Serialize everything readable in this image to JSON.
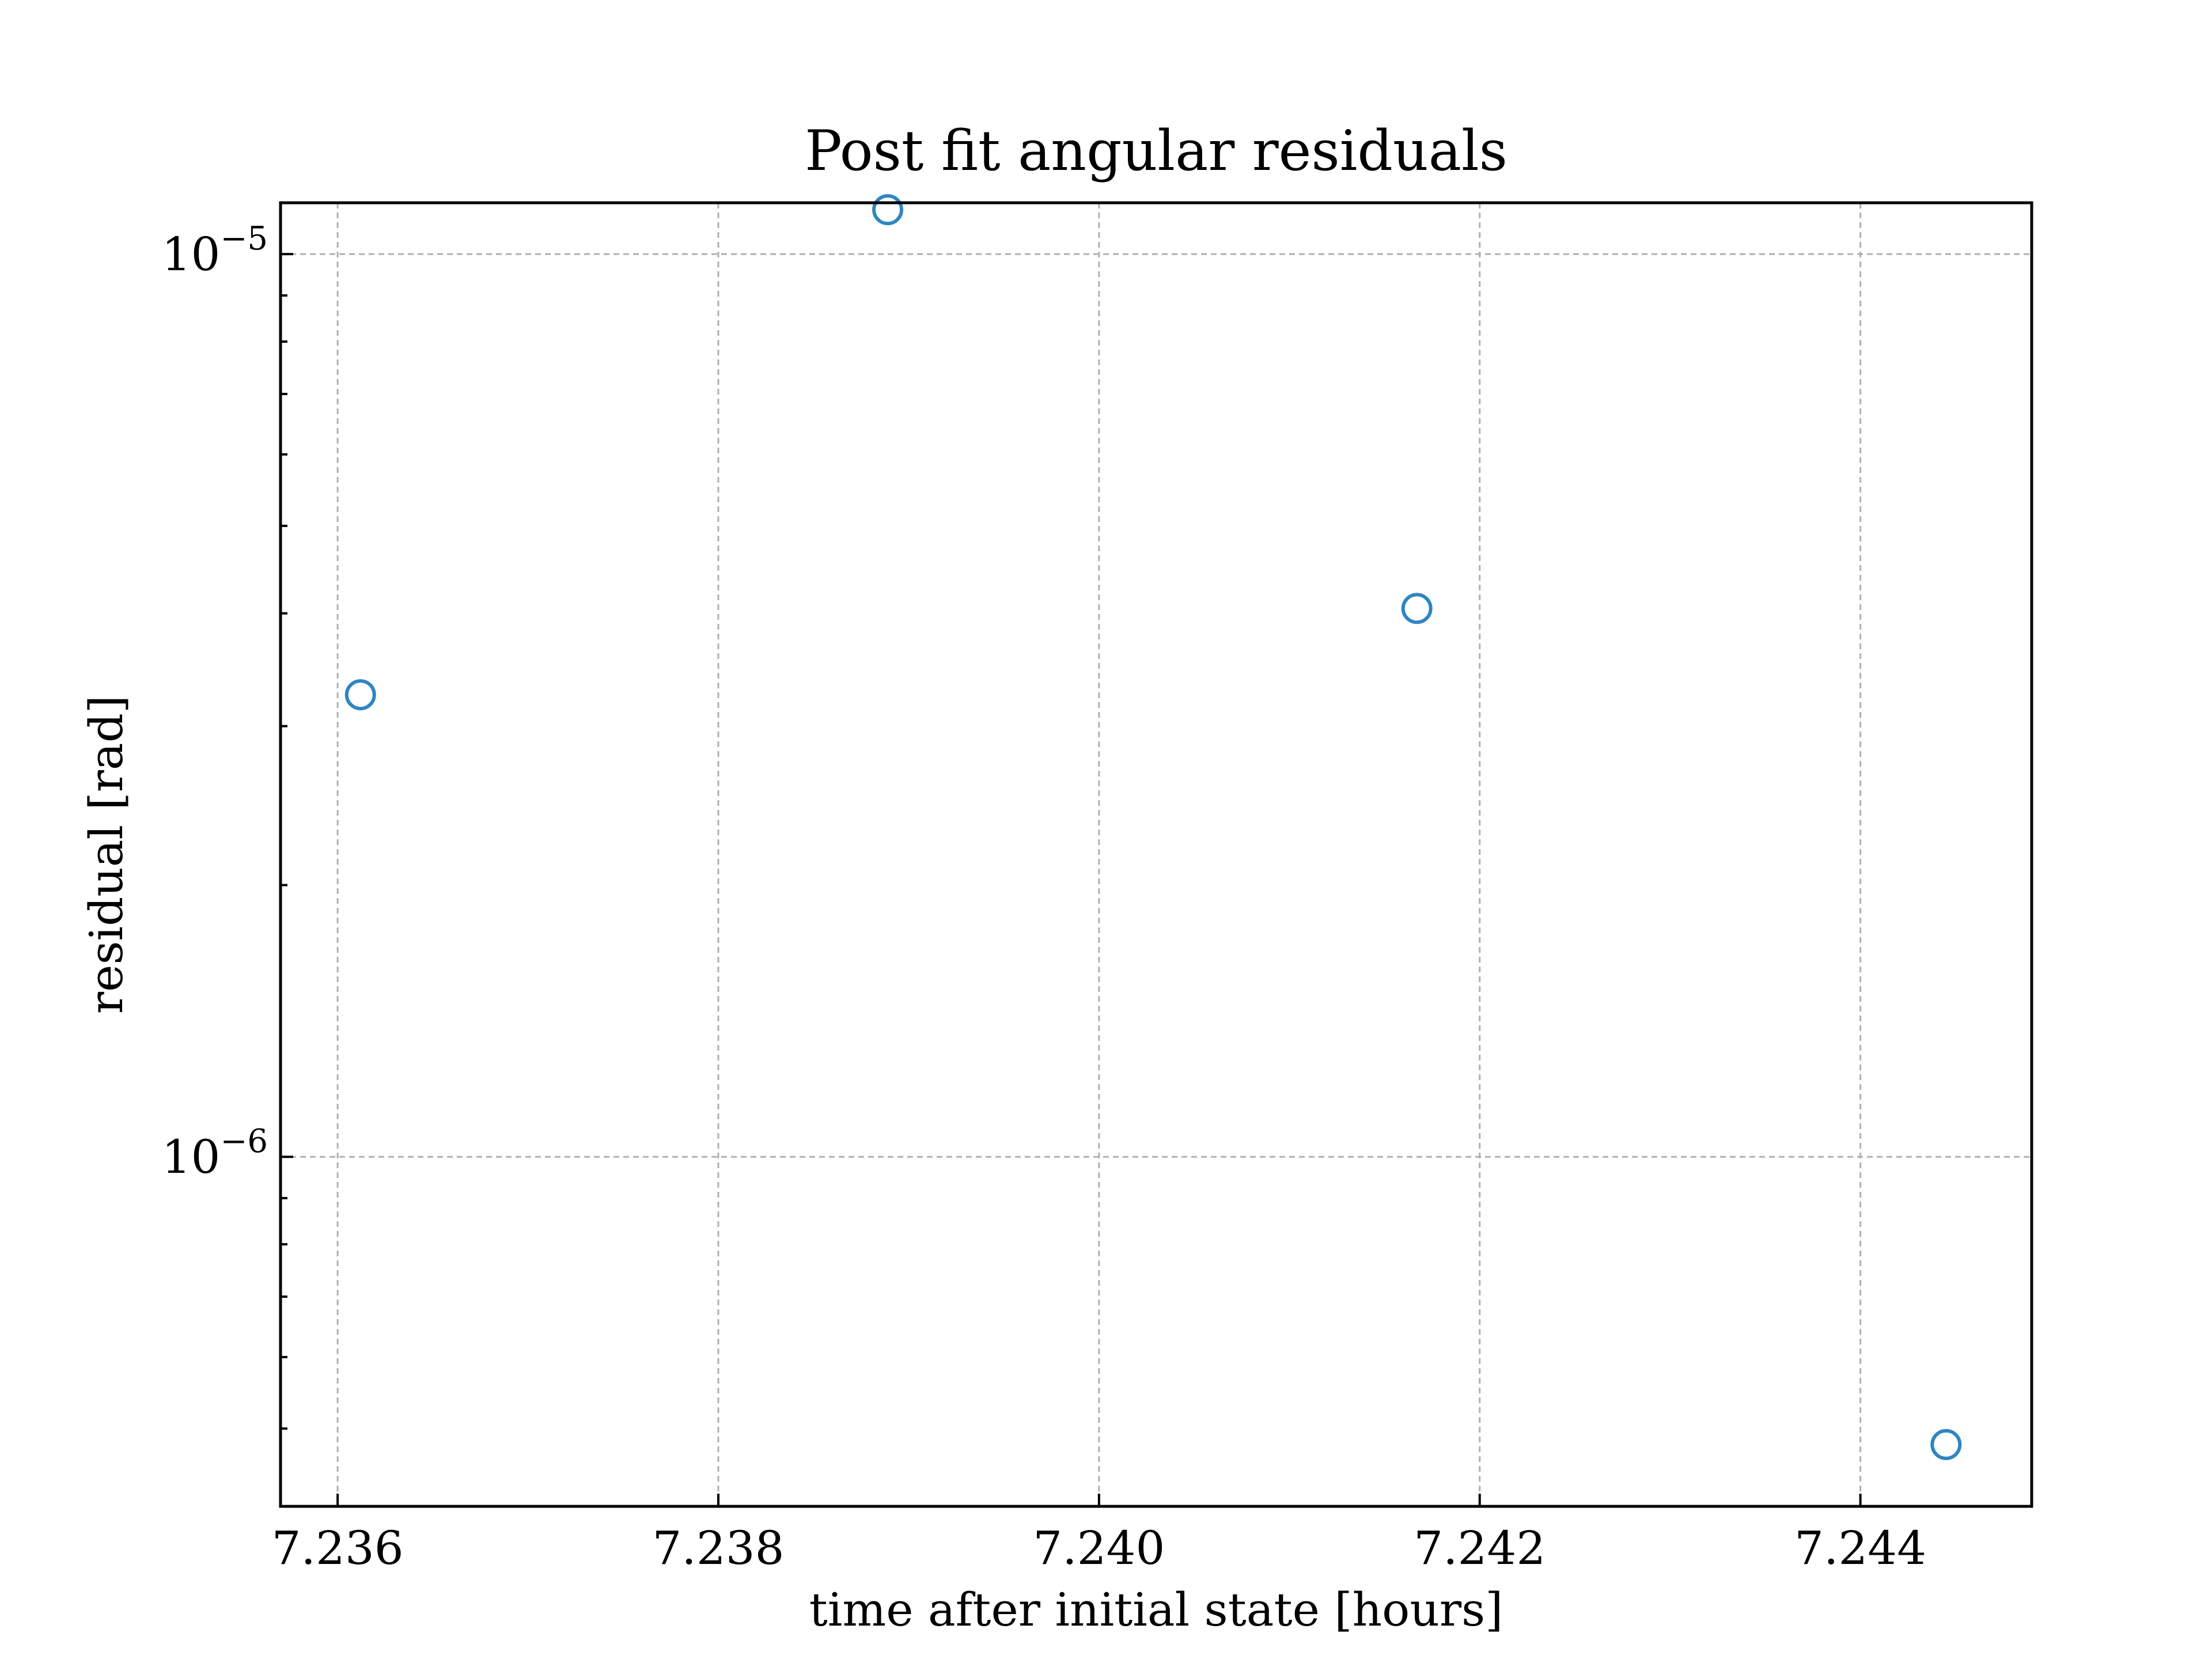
{
  "chart_data": {
    "type": "scatter",
    "title": "Post fit angular residuals",
    "xlabel": "time after initial state [hours]",
    "ylabel": "residual [rad]",
    "xlim": [
      7.2357,
      7.2449
    ],
    "ylim": [
      4.1e-07,
      1.14e-05
    ],
    "yscale": "log",
    "x_ticks": [
      7.236,
      7.238,
      7.24,
      7.242,
      7.244
    ],
    "x_tick_labels": [
      "7.236",
      "7.238",
      "7.240",
      "7.242",
      "7.244"
    ],
    "y_ticks": [
      1e-06,
      1e-05
    ],
    "y_tick_labels": [
      {
        "base": "10",
        "exponent": "−6"
      },
      {
        "base": "10",
        "exponent": "−5"
      }
    ],
    "y_minor_ticks": [
      5e-07,
      6e-07,
      7e-07,
      8e-07,
      9e-07,
      2e-06,
      3e-06,
      4e-06,
      5e-06,
      6e-06,
      7e-06,
      8e-06,
      9e-06
    ],
    "grid": true,
    "marker": "open-circle",
    "color": "#2e86c1",
    "series": [
      {
        "x": [
          7.23612,
          7.23889,
          7.24167,
          7.24445
        ],
        "y": [
          3.25e-06,
          1.12e-05,
          4.05e-06,
          4.8e-07
        ]
      }
    ]
  }
}
